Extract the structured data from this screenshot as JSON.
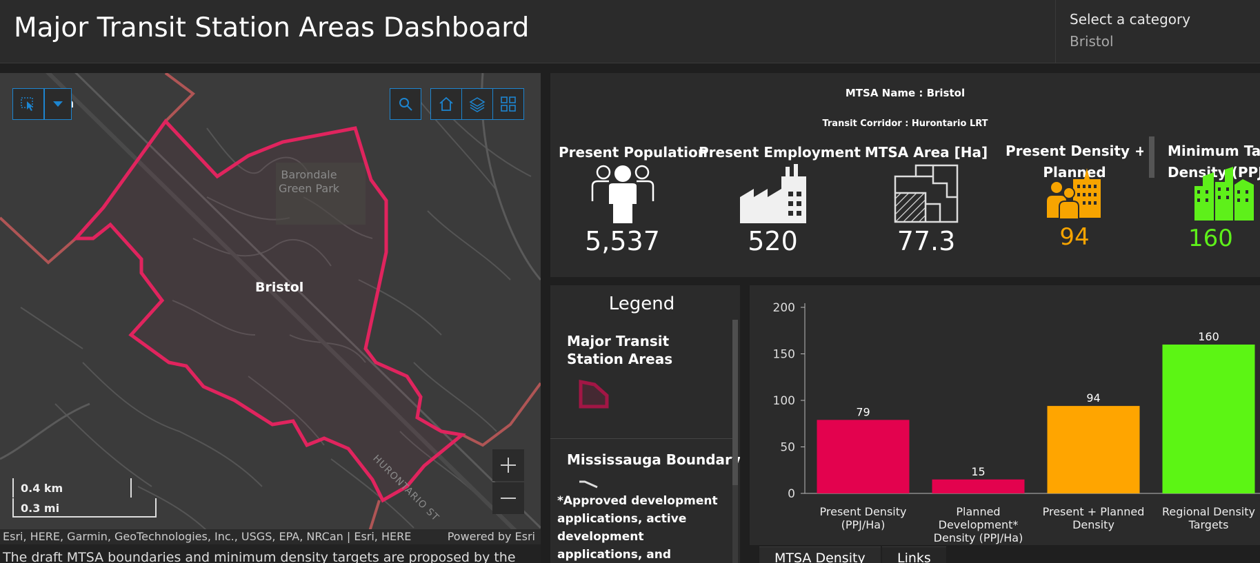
{
  "header": {
    "title": "Major Transit Station Areas Dashboard"
  },
  "category_selector": {
    "label": "Select a category",
    "value": "Bristol"
  },
  "map": {
    "station_label": "Bristol",
    "park_label_line1": "Barondale",
    "park_label_line2": "Green Park",
    "street_label": "HURONTARIO ST",
    "partial_label": "on",
    "scale_km": "0.4 km",
    "scale_mi": "0.3 mi",
    "attribution": "Esri, HERE, Garmin, GeoTechnologies, Inc., USGS, EPA, NRCan | Esri, HERE",
    "powered_by": "Powered by Esri",
    "mtsa_boundary_color": "#e0245e",
    "municipal_boundary_color": "#c45a5a"
  },
  "description_text": "The draft MTSA boundaries and minimum density targets are proposed by the",
  "kpi": {
    "mtsa_name": "MTSA Name : Bristol",
    "transit_corridor": "Transit Corridor : Hurontario LRT",
    "items": [
      {
        "label": "Present Population",
        "value": "5,537",
        "color": "#ffffff",
        "icon": "population-icon"
      },
      {
        "label": "Present Employment",
        "value": "520",
        "color": "#ffffff",
        "icon": "factory-icon"
      },
      {
        "label": "MTSA Area [Ha]",
        "value": "77.3",
        "color": "#ffffff",
        "icon": "floorplan-icon"
      },
      {
        "label_line1": "Present  Density +",
        "label_line2": "Planned",
        "value": "94",
        "color": "#f7a400",
        "icon": "people-buildings-icon"
      },
      {
        "label_line1": "Minimum Targ",
        "label_line2": "Density (PPJ/",
        "value": "160",
        "color": "#5ef01a",
        "icon": "city-buildings-icon"
      }
    ]
  },
  "legend": {
    "title": "Legend",
    "item1": "Major Transit Station Areas",
    "item2": "Mississauga Boundary",
    "note": "*Approved development applications, active development applications, and estimated development"
  },
  "tabs": [
    "MTSA Density",
    "Links"
  ],
  "chart_data": {
    "type": "bar",
    "categories": [
      [
        "Present Density",
        "(PPJ/Ha)"
      ],
      [
        "Planned",
        "Development*",
        "Density (PPJ/Ha)"
      ],
      [
        "Present + Planned",
        "Density"
      ],
      [
        "Regional Density",
        "Targets"
      ]
    ],
    "values": [
      79,
      15,
      94,
      160
    ],
    "colors": [
      "#e3024e",
      "#e3024e",
      "#ffa500",
      "#5cf514"
    ],
    "ylim": [
      0,
      200
    ],
    "yticks": [
      0,
      50,
      100,
      150,
      200
    ],
    "grid": false
  }
}
